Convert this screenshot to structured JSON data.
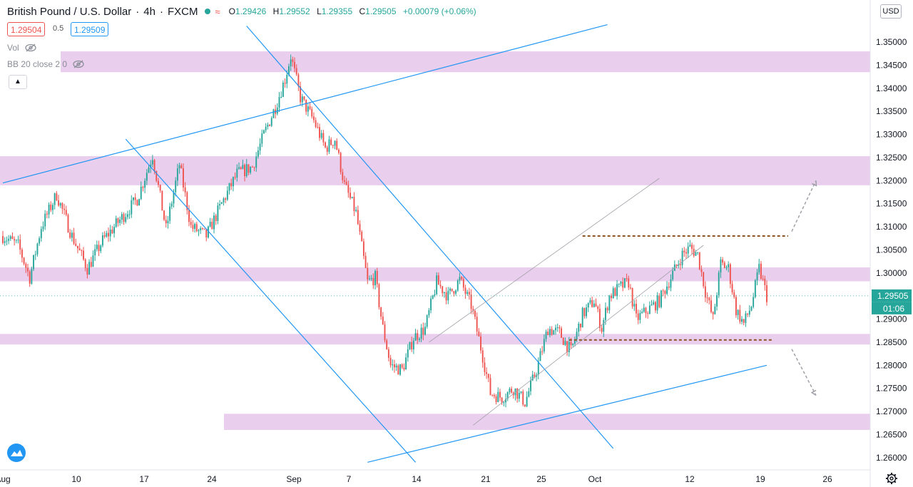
{
  "header": {
    "symbol": "British Pound / U.S. Dollar",
    "interval": "4h",
    "source": "FXCM",
    "market_status_icon": "wave-icon",
    "ohlc": [
      {
        "k": "O",
        "v": "1.29426"
      },
      {
        "k": "H",
        "v": "1.29552"
      },
      {
        "k": "L",
        "v": "1.29355"
      },
      {
        "k": "C",
        "v": "1.29505"
      }
    ],
    "change": "+0.00079 (+0.06%)"
  },
  "trade": {
    "sell": "1.29504",
    "spread": "0.5",
    "buy": "1.29509"
  },
  "indicators": [
    {
      "label": "Vol",
      "icon": "eye-crossed-icon"
    },
    {
      "label": "BB 20 close 2 0",
      "icon": "eye-crossed-icon"
    }
  ],
  "currency": "USD",
  "last_price": {
    "price": "1.29505",
    "countdown": "01:06"
  },
  "colors": {
    "up": "#26a69a",
    "down": "#ef5350",
    "zone": "#e1bee7",
    "trendline": "#2196f3",
    "level": "#8d5524"
  },
  "chart_data": {
    "type": "candlestick",
    "x_ticks": [
      "Aug",
      "10",
      "17",
      "24",
      "Sep",
      "7",
      "14",
      "21",
      "25",
      "Oct",
      "12",
      "19",
      "26"
    ],
    "y_ticks": [
      "1.35000",
      "1.34500",
      "1.34000",
      "1.33500",
      "1.33000",
      "1.32500",
      "1.32000",
      "1.31500",
      "1.31000",
      "1.30500",
      "1.30000",
      "1.29500",
      "1.29000",
      "1.28500",
      "1.28000",
      "1.27500",
      "1.27000",
      "1.26500",
      "1.26000"
    ],
    "ylim": [
      1.2575,
      1.3545
    ],
    "anchors": [
      {
        "i": 0,
        "p": 1.308
      },
      {
        "i": 8,
        "p": 1.306
      },
      {
        "i": 14,
        "p": 1.299
      },
      {
        "i": 20,
        "p": 1.31
      },
      {
        "i": 28,
        "p": 1.317
      },
      {
        "i": 36,
        "p": 1.308
      },
      {
        "i": 44,
        "p": 1.301
      },
      {
        "i": 52,
        "p": 1.307
      },
      {
        "i": 62,
        "p": 1.312
      },
      {
        "i": 70,
        "p": 1.316
      },
      {
        "i": 78,
        "p": 1.3255
      },
      {
        "i": 85,
        "p": 1.3095
      },
      {
        "i": 92,
        "p": 1.3235
      },
      {
        "i": 98,
        "p": 1.31
      },
      {
        "i": 106,
        "p": 1.308
      },
      {
        "i": 114,
        "p": 1.315
      },
      {
        "i": 122,
        "p": 1.3215
      },
      {
        "i": 130,
        "p": 1.323
      },
      {
        "i": 136,
        "p": 1.33
      },
      {
        "i": 142,
        "p": 1.336
      },
      {
        "i": 147,
        "p": 1.342
      },
      {
        "i": 150,
        "p": 1.347
      },
      {
        "i": 155,
        "p": 1.338
      },
      {
        "i": 162,
        "p": 1.333
      },
      {
        "i": 168,
        "p": 1.327
      },
      {
        "i": 173,
        "p": 1.329
      },
      {
        "i": 178,
        "p": 1.319
      },
      {
        "i": 184,
        "p": 1.313
      },
      {
        "i": 190,
        "p": 1.298
      },
      {
        "i": 194,
        "p": 1.299
      },
      {
        "i": 198,
        "p": 1.288
      },
      {
        "i": 202,
        "p": 1.28
      },
      {
        "i": 208,
        "p": 1.279
      },
      {
        "i": 214,
        "p": 1.286
      },
      {
        "i": 220,
        "p": 1.288
      },
      {
        "i": 226,
        "p": 1.298
      },
      {
        "i": 232,
        "p": 1.295
      },
      {
        "i": 238,
        "p": 1.2985
      },
      {
        "i": 244,
        "p": 1.293
      },
      {
        "i": 250,
        "p": 1.282
      },
      {
        "i": 254,
        "p": 1.274
      },
      {
        "i": 260,
        "p": 1.273
      },
      {
        "i": 266,
        "p": 1.275
      },
      {
        "i": 272,
        "p": 1.272
      },
      {
        "i": 278,
        "p": 1.279
      },
      {
        "i": 284,
        "p": 1.288
      },
      {
        "i": 290,
        "p": 1.287
      },
      {
        "i": 296,
        "p": 1.283
      },
      {
        "i": 302,
        "p": 1.291
      },
      {
        "i": 308,
        "p": 1.294
      },
      {
        "i": 312,
        "p": 1.288
      },
      {
        "i": 316,
        "p": 1.295
      },
      {
        "i": 322,
        "p": 1.297
      },
      {
        "i": 326,
        "p": 1.298
      },
      {
        "i": 330,
        "p": 1.29
      },
      {
        "i": 336,
        "p": 1.292
      },
      {
        "i": 342,
        "p": 1.294
      },
      {
        "i": 348,
        "p": 1.299
      },
      {
        "i": 354,
        "p": 1.304
      },
      {
        "i": 358,
        "p": 1.3055
      },
      {
        "i": 362,
        "p": 1.304
      },
      {
        "i": 366,
        "p": 1.296
      },
      {
        "i": 370,
        "p": 1.29
      },
      {
        "i": 374,
        "p": 1.302
      },
      {
        "i": 378,
        "p": 1.301
      },
      {
        "i": 382,
        "p": 1.292
      },
      {
        "i": 386,
        "p": 1.289
      },
      {
        "i": 390,
        "p": 1.293
      },
      {
        "i": 394,
        "p": 1.301
      },
      {
        "i": 398,
        "p": 1.295
      }
    ],
    "zones": [
      {
        "from": 1.3435,
        "to": 1.348
      },
      {
        "from": 1.319,
        "to": 1.3253
      },
      {
        "from": 1.2982,
        "to": 1.3012
      },
      {
        "from": 1.2845,
        "to": 1.2868
      },
      {
        "from": 1.266,
        "to": 1.2695
      }
    ],
    "trendlines": [
      {
        "from": [
          0,
          1.3195
        ],
        "to": [
          315,
          1.3538
        ]
      },
      {
        "from": [
          127,
          1.3535
        ],
        "to": [
          318,
          1.262
        ]
      },
      {
        "from": [
          64,
          1.329
        ],
        "to": [
          215,
          1.259
        ]
      },
      {
        "from": [
          190,
          1.259
        ],
        "to": [
          398,
          1.28
        ]
      }
    ],
    "channel_lines": [
      {
        "from": [
          245,
          1.267
        ],
        "to": [
          365,
          1.306
        ]
      },
      {
        "from": [
          222,
          1.285
        ],
        "to": [
          342,
          1.3205
        ]
      }
    ],
    "levels": [
      {
        "price": 1.308,
        "from": 302,
        "to": 382
      },
      {
        "price": 1.2855,
        "from": 295,
        "to": 374
      }
    ],
    "projections": [
      {
        "from": [
          362,
          1.309
        ],
        "to": [
          375,
          1.32
        ]
      },
      {
        "from": [
          362,
          1.2835
        ],
        "to": [
          375,
          1.2735
        ]
      }
    ],
    "bars": 400
  }
}
